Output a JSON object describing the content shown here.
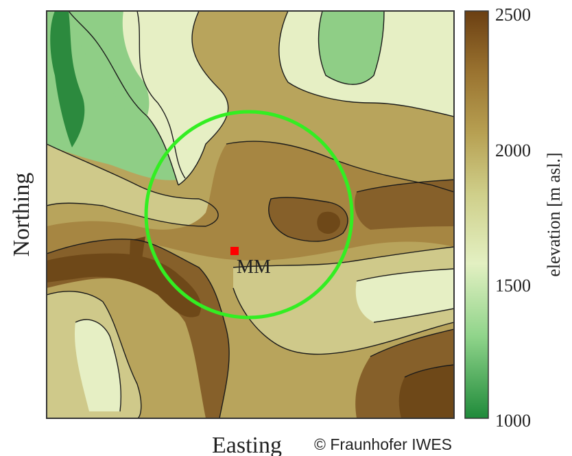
{
  "map": {
    "xlabel": "Easting",
    "ylabel": "Northing",
    "marker": {
      "label": "MM",
      "color": "#ff0000"
    },
    "ring_color": "#33ee22",
    "contour_color": "#1a1a1a"
  },
  "colorbar": {
    "label": "elevation [m asl.]",
    "min": 1000,
    "max": 2500,
    "ticks": [
      "2500",
      "2000",
      "1500",
      "1000"
    ],
    "colors": [
      "#1f8a3a",
      "#8fd48a",
      "#e3f0c2",
      "#cfcf8a",
      "#b7a052",
      "#9a7330",
      "#6b3f12"
    ]
  },
  "copyright": "© Fraunhofer IWES",
  "terrain_palette": {
    "low": "#2c8a3e",
    "low_mid": "#8fce86",
    "light": "#e6efc4",
    "pale": "#cfc98a",
    "mid": "#b8a45c",
    "tan": "#a68642",
    "brown": "#86602a",
    "dark": "#6e4818"
  }
}
